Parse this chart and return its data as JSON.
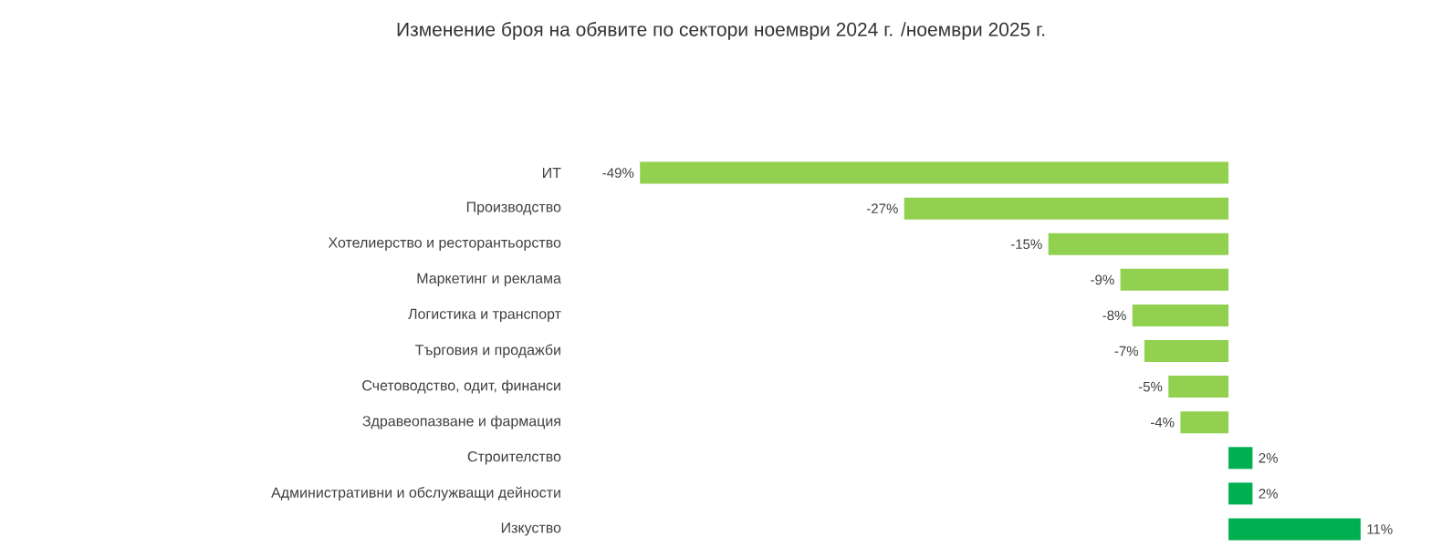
{
  "chart_data": {
    "type": "bar",
    "orientation": "horizontal",
    "title": "Изменение броя на обявите по сектори ноември 2024 г. /ноември 2025 г.",
    "categories": [
      "ИТ",
      "Производство",
      "Хотелиерство и ресторантьорство",
      "Маркетинг и реклама",
      "Логистика и транспорт",
      "Търговия и продажби",
      "Счетоводство, одит, финанси",
      "Здравеопазване и фармация",
      "Строителство",
      "Административни и обслужващи дейности",
      "Изкуство"
    ],
    "values": [
      -49,
      -27,
      -15,
      -9,
      -8,
      -7,
      -5,
      -4,
      2,
      2,
      11
    ],
    "value_labels": [
      "-49%",
      "-27%",
      "-15%",
      "-9%",
      "-8%",
      "-7%",
      "-5%",
      "-4%",
      "2%",
      "2%",
      "11%"
    ],
    "colors": [
      "#92d050",
      "#92d050",
      "#92d050",
      "#92d050",
      "#92d050",
      "#92d050",
      "#92d050",
      "#92d050",
      "#00b050",
      "#00b050",
      "#00b050"
    ]
  }
}
